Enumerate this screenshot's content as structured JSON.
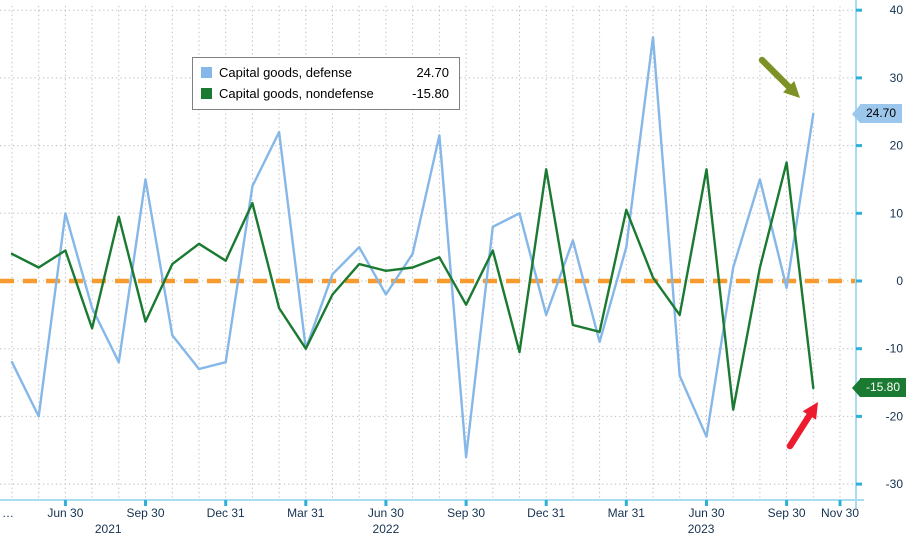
{
  "chart_data": {
    "type": "line",
    "title": "",
    "grid": "dotted",
    "legend_position": "top-center",
    "axis_slots": 32,
    "ylim": [
      -32,
      42
    ],
    "yticks": [
      40,
      30,
      20,
      10,
      0,
      -10,
      -20,
      -30
    ],
    "zero_line_color": "#f79b2e",
    "zero_line_style": "dashed",
    "left_clipped_label": "…",
    "months": [
      "Apr 2021",
      "May 2021",
      "Jun 2021",
      "Jul 2021",
      "Aug 2021",
      "Sep 2021",
      "Oct 2021",
      "Nov 2021",
      "Dec 2021",
      "Jan 2022",
      "Feb 2022",
      "Mar 2022",
      "Apr 2022",
      "May 2022",
      "Jun 2022",
      "Jul 2022",
      "Aug 2022",
      "Sep 2022",
      "Oct 2022",
      "Nov 2022",
      "Dec 2022",
      "Jan 2023",
      "Feb 2023",
      "Mar 2023",
      "Apr 2023",
      "May 2023",
      "Jun 2023",
      "Jul 2023",
      "Aug 2023",
      "Sep 2023",
      "Oct 2023"
    ],
    "xticks": [
      {
        "i": 2,
        "label": "Jun 30"
      },
      {
        "i": 5,
        "label": "Sep 30"
      },
      {
        "i": 8,
        "label": "Dec 31"
      },
      {
        "i": 11,
        "label": "Mar 31"
      },
      {
        "i": 14,
        "label": "Jun 30"
      },
      {
        "i": 17,
        "label": "Sep 30"
      },
      {
        "i": 20,
        "label": "Dec 31"
      },
      {
        "i": 23,
        "label": "Mar 31"
      },
      {
        "i": 26,
        "label": "Jun 30"
      },
      {
        "i": 29,
        "label": "Sep 30"
      },
      {
        "i": 31,
        "label": "Nov 30"
      }
    ],
    "year_labels": [
      {
        "i": 3.6,
        "label": "2021"
      },
      {
        "i": 14,
        "label": "2022"
      },
      {
        "i": 25.8,
        "label": "2023"
      }
    ],
    "series": [
      {
        "id": "defense",
        "name": "Capital goods, defense",
        "color": "#85b7e8",
        "last_value": 24.7,
        "values": [
          -12,
          -20,
          10,
          -4,
          -12,
          15,
          -8,
          -13,
          -12,
          14,
          22,
          -10,
          1,
          5,
          -2,
          4,
          21.5,
          -26,
          8,
          10,
          -5,
          6,
          -9,
          5,
          36,
          -14,
          -23,
          2,
          15,
          -1,
          24.7
        ]
      },
      {
        "id": "nondefense",
        "name": "Capital goods, nondefense",
        "color": "#1b7a31",
        "last_value": -15.8,
        "values": [
          4,
          2,
          4.5,
          -7,
          9.5,
          -6,
          2.5,
          5.5,
          3,
          11.5,
          -4,
          -10,
          -2,
          2.5,
          1.5,
          2,
          3.5,
          -3.5,
          4.5,
          -10.5,
          16.5,
          -6.5,
          -7.5,
          10.5,
          0.5,
          -5,
          16.5,
          -19,
          2,
          17.5,
          -15.8
        ]
      }
    ]
  },
  "legend": {
    "rows": [
      {
        "label": "Capital goods, defense",
        "value": "24.70"
      },
      {
        "label": "Capital goods, nondefense",
        "value": "-15.80"
      }
    ]
  },
  "badges": {
    "defense": "24.70",
    "nondefense": "-15.80"
  },
  "annotations": {
    "olive_arrow": {
      "color": "#7d9226",
      "direction": "down-right",
      "target": "defense series endpoint"
    },
    "red_arrow": {
      "color": "#ec1c2e",
      "direction": "up-right",
      "target": "nondefense series endpoint"
    }
  }
}
